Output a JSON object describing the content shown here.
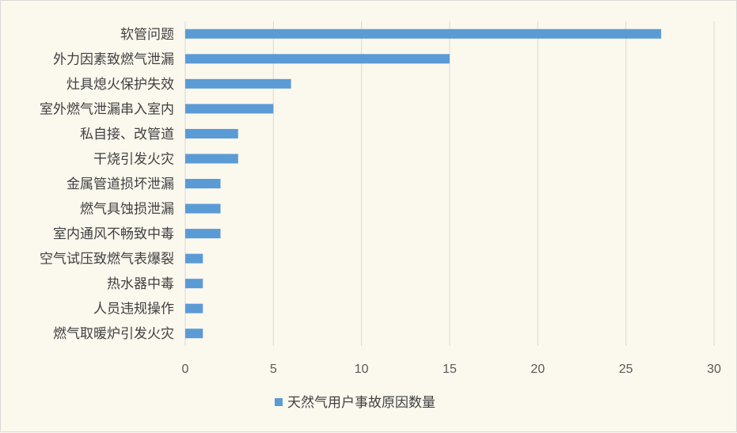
{
  "chart_data": {
    "type": "bar",
    "orientation": "horizontal",
    "categories": [
      "软管问题",
      "外力因素致燃气泄漏",
      "灶具熄火保护失效",
      "室外燃气泄漏串入室内",
      "私自接、改管道",
      "干烧引发火灾",
      "金属管道损坏泄漏",
      "燃气具蚀损泄漏",
      "室内通风不畅致中毒",
      "空气试压致燃气表爆裂",
      "热水器中毒",
      "人员违规操作",
      "燃气取暖炉引发火灾"
    ],
    "series": [
      {
        "name": "天然气用户事故原因数量",
        "values": [
          27,
          15,
          6,
          5,
          3,
          3,
          2,
          2,
          2,
          1,
          1,
          1,
          1
        ],
        "color": "#5b9bd5"
      }
    ],
    "xlim": [
      0,
      30
    ],
    "xticks": [
      0,
      5,
      10,
      15,
      20,
      25,
      30
    ],
    "grid": true,
    "legend_position": "bottom"
  }
}
